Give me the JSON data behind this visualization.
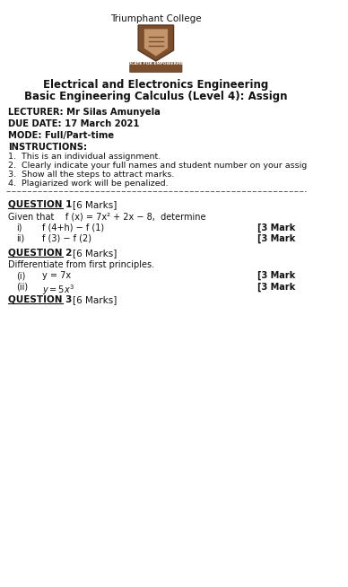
{
  "college_name": "Triumphant College",
  "title_line1": "Electrical and Electronics Engineering",
  "title_line2": "Basic Engineering Calculus (Level 4): Assign",
  "lecturer": "LECTURER: Mr Silas Amunyela",
  "due_date": "DUE DATE: 17 March 2021",
  "mode": "MODE: Full/Part-time",
  "instructions_header": "INSTRUCTIONS:",
  "instructions": [
    "1.  This is an individual assignment.",
    "2.  Clearly indicate your full names and student number on your assig",
    "3.  Show all the steps to attract marks.",
    "4.  Plagiarized work will be penalized."
  ],
  "q1_header": "QUESTION 1",
  "q1_marks": "[6 Marks]",
  "q1_given": "Given that    f (x) = 7x² + 2x − 8,  determine",
  "q1_sub": [
    [
      "i)",
      "f (4+h) − f (1)",
      "[3 Mark"
    ],
    [
      "ii)",
      "f (3) − f (2)",
      "[3 Mark"
    ]
  ],
  "q2_header": "QUESTION 2",
  "q2_marks": "[6 Marks]",
  "q2_given": "Differentiate from first principles.",
  "q2_sub": [
    [
      "(i)",
      "y = 7x",
      "[3 Mark"
    ],
    [
      "(ii)",
      "y = 5x³",
      "[3 Mark"
    ]
  ],
  "q3_header": "QUESTION 3",
  "q3_marks": "[6 Marks]",
  "bg_color": "#ffffff",
  "text_color": "#000000",
  "shield_color": "#7B4F2E",
  "shield_inner": "#C4956A",
  "banner_text": "EDUCATE FOR EMPOWERMENT"
}
